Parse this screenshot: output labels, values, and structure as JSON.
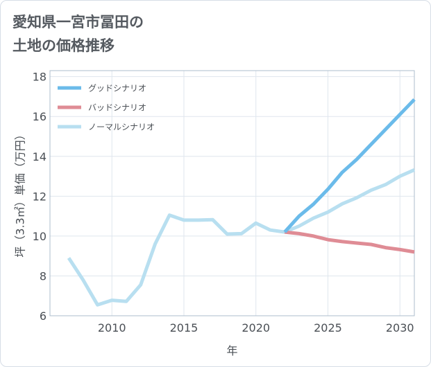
{
  "page": {
    "title_line1": "愛知県一宮市冨田の",
    "title_line2": "土地の価格推移"
  },
  "chart_data": {
    "type": "line",
    "title": "愛知県一宮市冨田の土地の価格推移",
    "xlabel": "年",
    "ylabel": "坪（3.3㎡）単価（万円）",
    "xlim": [
      2005.7,
      2031
    ],
    "ylim": [
      6,
      18.3
    ],
    "xticks": [
      2010,
      2015,
      2020,
      2025,
      2030
    ],
    "yticks": [
      6,
      8,
      10,
      12,
      14,
      16,
      18
    ],
    "grid": true,
    "legend_position": "top-left",
    "series": [
      {
        "name": "グッドシナリオ",
        "color": "#6bbbea",
        "x": [
          2022,
          2023,
          2024,
          2025,
          2026,
          2027,
          2028,
          2029,
          2030,
          2031
        ],
        "values": [
          10.2,
          11.0,
          11.6,
          12.35,
          13.2,
          13.85,
          14.6,
          15.35,
          16.1,
          16.85
        ]
      },
      {
        "name": "バッドシナリオ",
        "color": "#df8c95",
        "x": [
          2022,
          2023,
          2024,
          2025,
          2026,
          2027,
          2028,
          2029,
          2030,
          2031
        ],
        "values": [
          10.2,
          10.12,
          10.0,
          9.82,
          9.72,
          9.65,
          9.58,
          9.42,
          9.32,
          9.2
        ]
      },
      {
        "name": "ノーマルシナリオ",
        "color": "#b8dff0",
        "x": [
          2007,
          2008,
          2009,
          2010,
          2011,
          2012,
          2013,
          2014,
          2015,
          2016,
          2017,
          2018,
          2019,
          2020,
          2021,
          2022,
          2023,
          2024,
          2025,
          2026,
          2027,
          2028,
          2029,
          2030,
          2031
        ],
        "values": [
          8.9,
          7.8,
          6.55,
          6.78,
          6.72,
          7.55,
          9.6,
          11.05,
          10.8,
          10.8,
          10.82,
          10.1,
          10.12,
          10.65,
          10.3,
          10.2,
          10.5,
          10.9,
          11.2,
          11.62,
          11.92,
          12.3,
          12.58,
          13.0,
          13.32
        ]
      }
    ]
  }
}
